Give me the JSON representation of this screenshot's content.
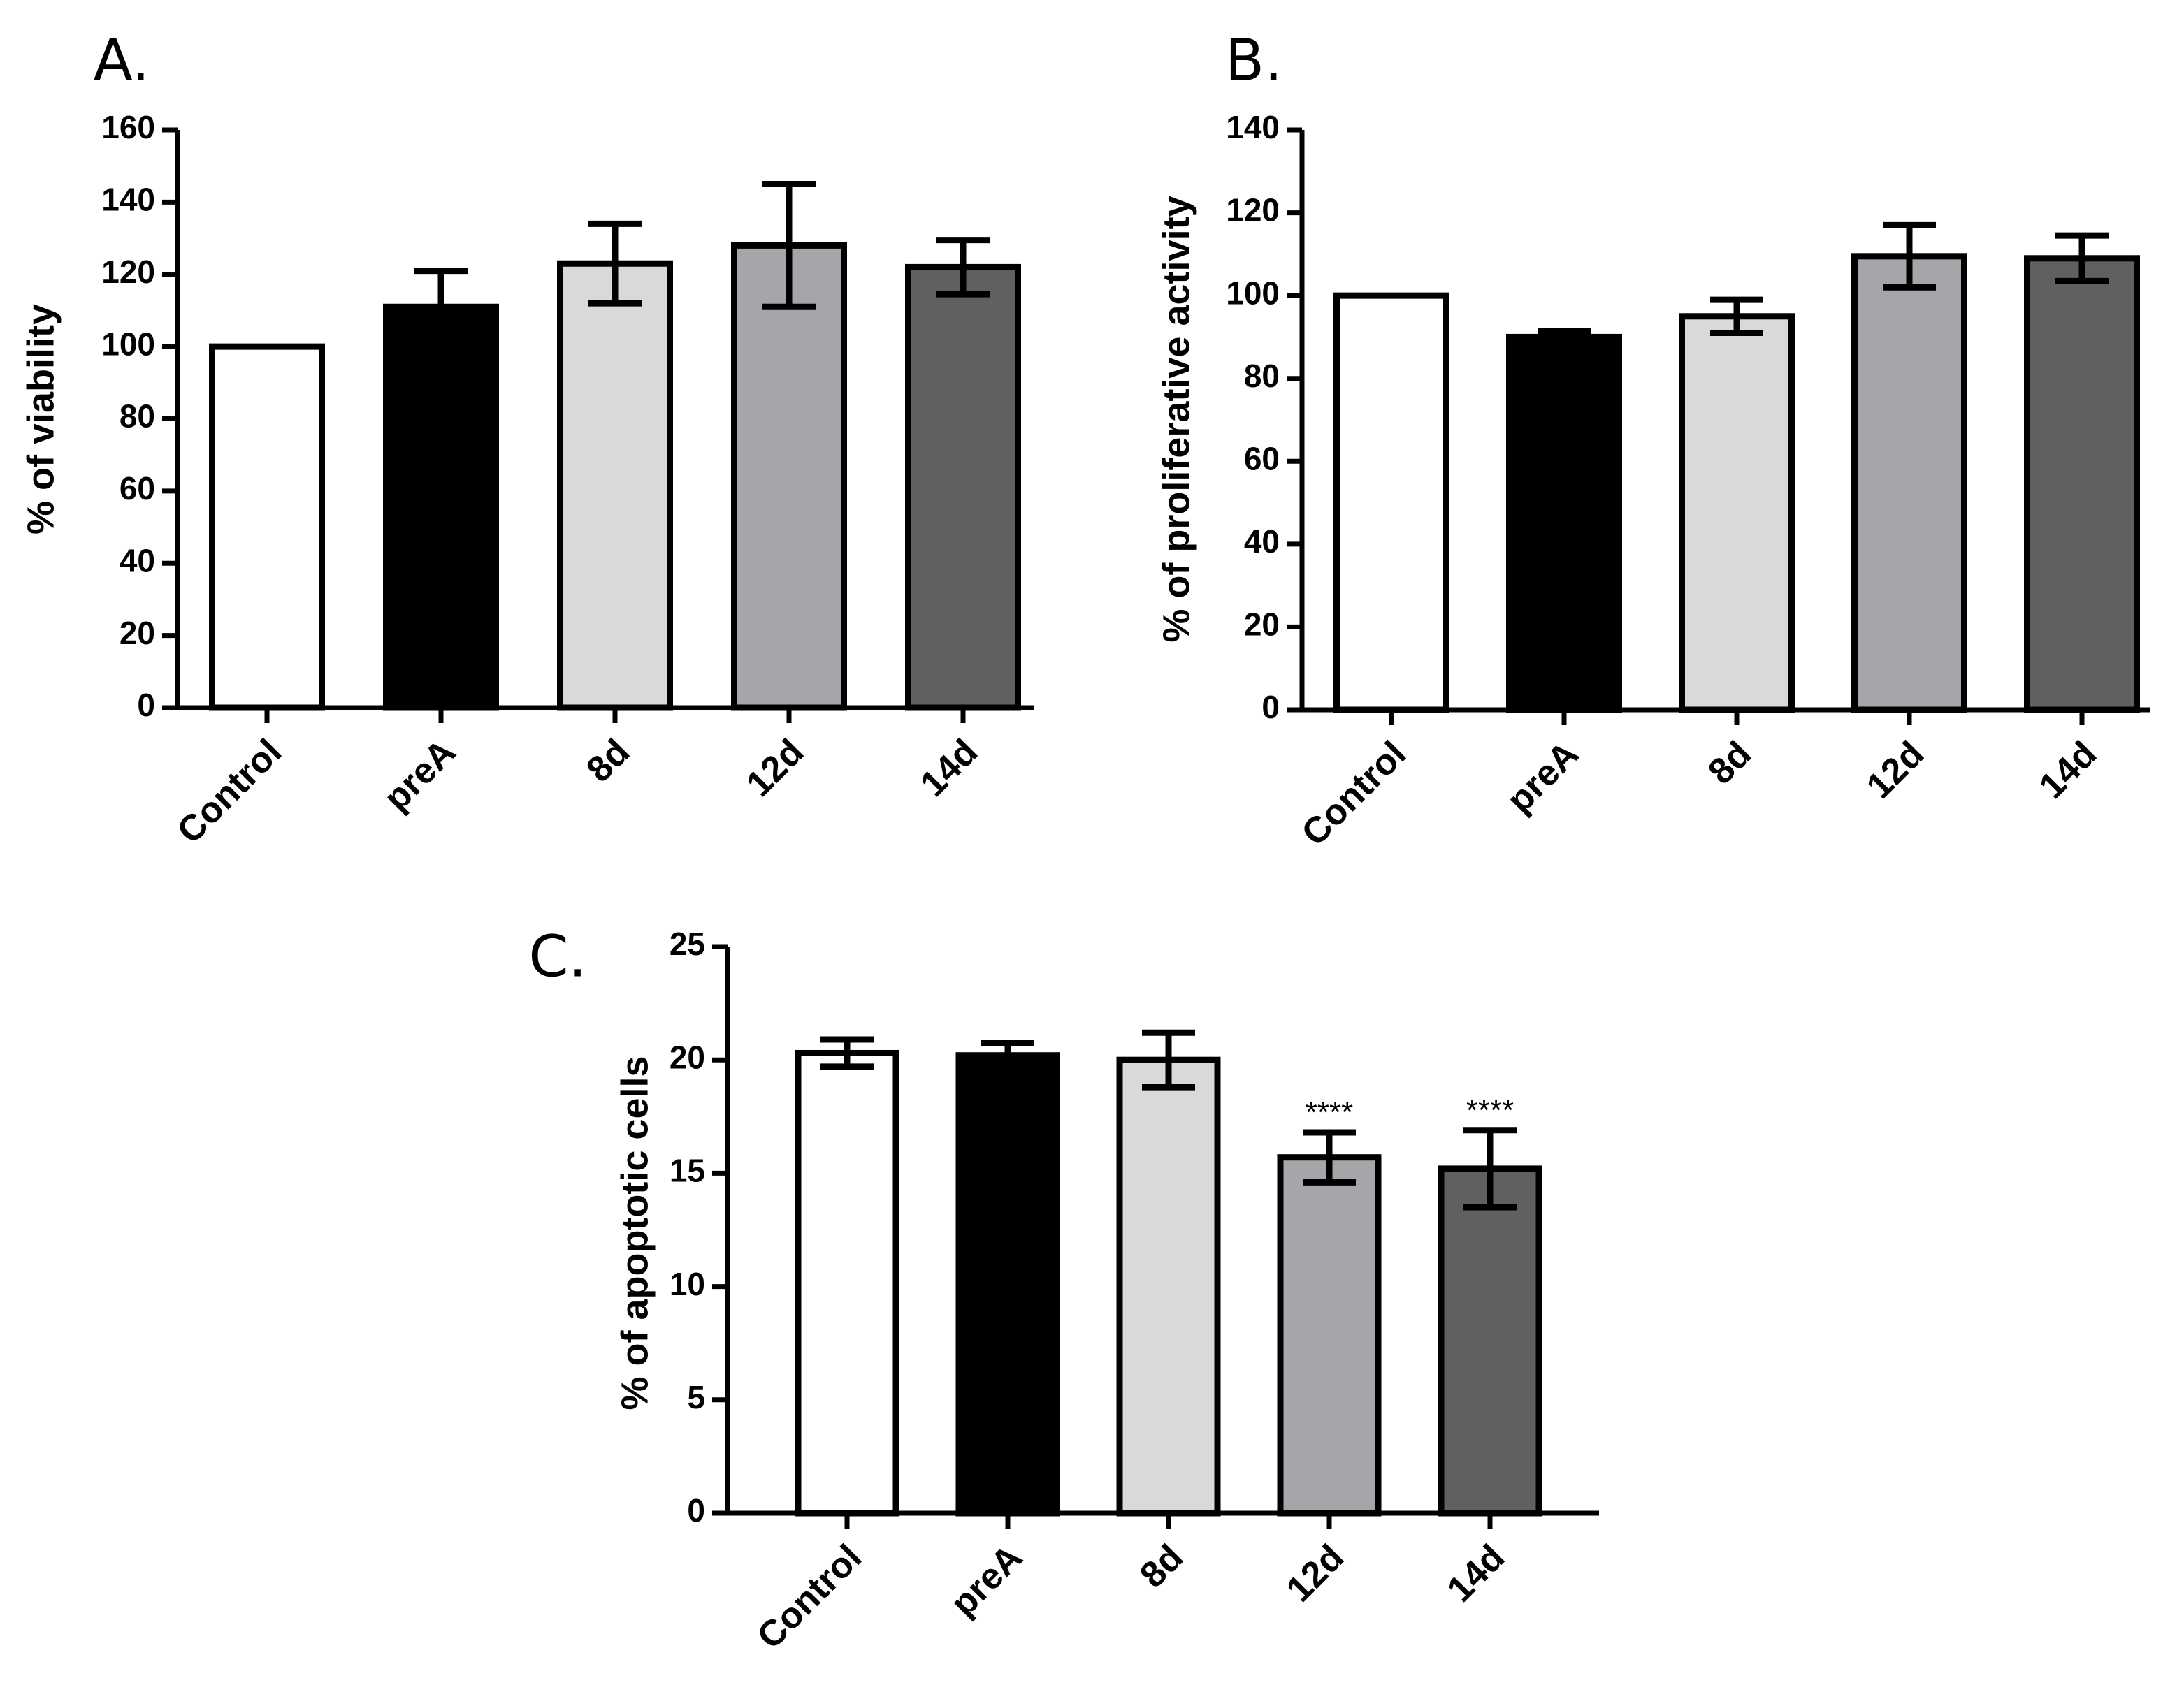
{
  "chart_data": [
    {
      "panel": "A.",
      "type": "bar",
      "ylabel": "% of viability",
      "xlabel": "",
      "ylim": [
        0,
        160
      ],
      "yticks": [
        0,
        20,
        40,
        60,
        80,
        100,
        120,
        140,
        160
      ],
      "categories": [
        "Control",
        "preA",
        "8d",
        "12d",
        "14d"
      ],
      "values": [
        100,
        111,
        123,
        128,
        122
      ],
      "error": [
        0,
        10,
        11,
        17,
        7.5
      ],
      "colors": [
        "#ffffff",
        "#000000",
        "#d9d9d9",
        "#a6a6aa",
        "#606060"
      ],
      "annotations": [
        "",
        "",
        "",
        "",
        ""
      ]
    },
    {
      "panel": "B.",
      "type": "bar",
      "ylabel": "% of proliferative activity",
      "xlabel": "",
      "ylim": [
        0,
        140
      ],
      "yticks": [
        0,
        20,
        40,
        60,
        80,
        100,
        120,
        140
      ],
      "categories": [
        "Control",
        "preA",
        "8d",
        "12d",
        "14d"
      ],
      "values": [
        100,
        90,
        95,
        109.5,
        109
      ],
      "error": [
        0,
        1.5,
        4,
        7.5,
        5.5
      ],
      "colors": [
        "#ffffff",
        "#000000",
        "#d9d9d9",
        "#a6a6aa",
        "#606060"
      ],
      "annotations": [
        "",
        "",
        "",
        "",
        ""
      ]
    },
    {
      "panel": "C.",
      "type": "bar",
      "ylabel": "% of apoptotic cells",
      "xlabel": "",
      "ylim": [
        0,
        25
      ],
      "yticks": [
        0,
        5,
        10,
        15,
        20,
        25
      ],
      "categories": [
        "Control",
        "preA",
        "8d",
        "12d",
        "14d"
      ],
      "values": [
        20.3,
        20.2,
        20,
        15.7,
        15.2
      ],
      "error": [
        0.6,
        0.55,
        1.2,
        1.1,
        1.7
      ],
      "colors": [
        "#ffffff",
        "#000000",
        "#d9d9d9",
        "#a6a6aa",
        "#606060"
      ],
      "annotations": [
        "",
        "",
        "",
        "****",
        "****"
      ]
    }
  ]
}
